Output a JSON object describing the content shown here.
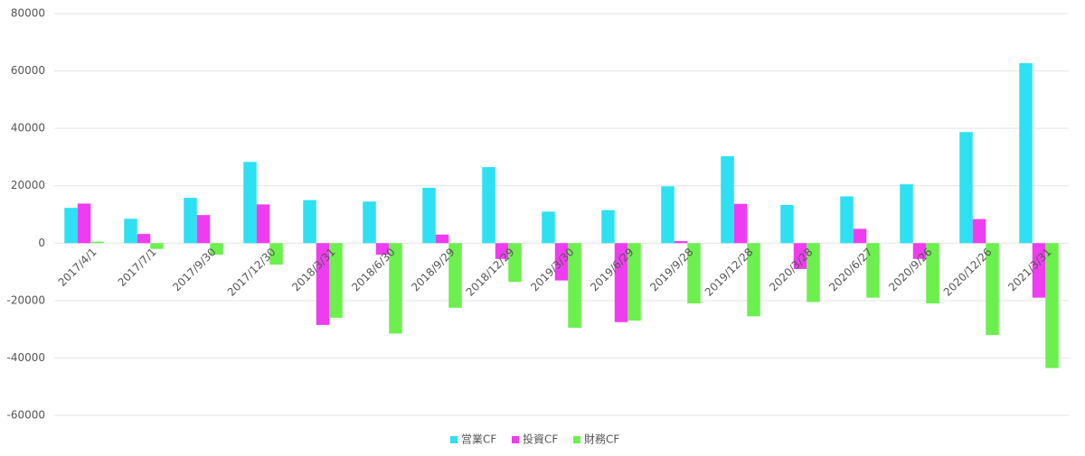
{
  "chart_data": {
    "type": "bar",
    "categories": [
      "2017/4/1",
      "2017/7/1",
      "2017/9/30",
      "2017/12/30",
      "2018/3/31",
      "2018/6/30",
      "2018/9/29",
      "2018/12/29",
      "2019/3/30",
      "2019/6/29",
      "2019/9/28",
      "2019/12/28",
      "2020/3/28",
      "2020/6/27",
      "2020/9/26",
      "2020/12/26",
      "2021/3/31"
    ],
    "series": [
      {
        "name": "営業CF",
        "color": "#2de1f2",
        "values": [
          12300,
          8500,
          15800,
          28300,
          15000,
          14500,
          19300,
          26500,
          11000,
          11500,
          19800,
          30300,
          13300,
          16300,
          20500,
          38700,
          62700
        ]
      },
      {
        "name": "投資CF",
        "color": "#f03cf0",
        "values": [
          13800,
          3200,
          9800,
          13500,
          -28500,
          -4000,
          3000,
          -5500,
          -13000,
          -27500,
          700,
          13700,
          -9000,
          5000,
          -5500,
          8400,
          -19000
        ]
      },
      {
        "name": "財務CF",
        "color": "#6cf04e",
        "values": [
          500,
          -2000,
          -4000,
          -7500,
          -26000,
          -31500,
          -22500,
          -13500,
          -29500,
          -27000,
          -21000,
          -25500,
          -20500,
          -19000,
          -21000,
          -32000,
          -43500
        ]
      }
    ],
    "ylim": [
      -60000,
      80000
    ],
    "yticks": [
      -60000,
      -40000,
      -20000,
      0,
      20000,
      40000,
      60000,
      80000
    ],
    "grid": true,
    "legend": "bottom"
  }
}
